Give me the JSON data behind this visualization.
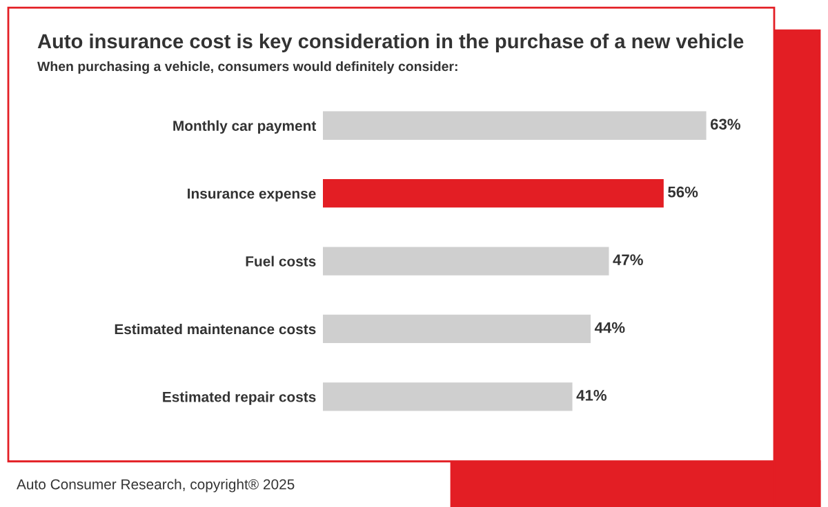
{
  "chart_data": {
    "type": "bar",
    "orientation": "horizontal",
    "title": "Auto insurance cost is key consideration in the purchase of a new vehicle",
    "subtitle": "When purchasing a vehicle, consumers would definitely consider:",
    "categories": [
      "Monthly car payment",
      "Insurance expense",
      "Fuel costs",
      "Estimated maintenance costs",
      "Estimated repair costs"
    ],
    "values": [
      63,
      56,
      47,
      44,
      41
    ],
    "colors": [
      "#cfcfcf",
      "#e31e24",
      "#cfcfcf",
      "#cfcfcf",
      "#cfcfcf"
    ],
    "value_labels": [
      "63%",
      "56%",
      "47%",
      "44%",
      "41%"
    ],
    "annotations": [
      "Auto Consumer Research, copyright® 2025"
    ],
    "grid": false,
    "legend": false
  }
}
